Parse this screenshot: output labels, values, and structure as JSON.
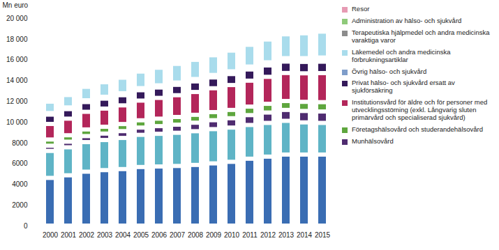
{
  "chart_data": {
    "type": "bar",
    "stacked": true,
    "ylabel": "Mn euro",
    "legend": "right",
    "categories": [
      "2000",
      "2001",
      "2002",
      "2003",
      "2004",
      "2005",
      "2006",
      "2007",
      "2008",
      "2009",
      "2010",
      "2011",
      "2012",
      "2013",
      "2014",
      "2015"
    ],
    "ylim": [
      0,
      20000
    ],
    "yticks": [
      0,
      2000,
      4000,
      6000,
      8000,
      {
        "value": 10000,
        "label": "10 000"
      },
      {
        "value": 12000,
        "label": "12 000"
      },
      {
        "value": 14000,
        "label": "14 000"
      },
      {
        "value": 16000,
        "label": "16 000"
      },
      {
        "value": 18000,
        "label": "18 000"
      },
      {
        "value": 20000,
        "label": "20 000"
      }
    ],
    "series": [
      {
        "color": "#3a6db3",
        "values": [
          4600,
          4850,
          5200,
          5350,
          5450,
          5650,
          5700,
          5750,
          5850,
          6000,
          6150,
          6450,
          6650,
          6850,
          6850,
          6850
        ]
      },
      {
        "color": "#5fb4c6",
        "values": [
          2600,
          2700,
          2850,
          2900,
          3000,
          3100,
          3150,
          3200,
          3250,
          3300,
          3300,
          3250,
          3250,
          3250,
          3100,
          3050
        ]
      },
      {
        "name": "Munhälsovård",
        "color": "#4f2c70",
        "values": [
          500,
          540,
          580,
          620,
          660,
          700,
          740,
          780,
          820,
          860,
          900,
          950,
          1000,
          1050,
          1100,
          1100
        ]
      },
      {
        "name": "Företagshälsovård och studerandehälsovård",
        "color": "#5ea63e",
        "values": [
          600,
          620,
          640,
          660,
          680,
          700,
          720,
          740,
          760,
          780,
          800,
          820,
          840,
          860,
          880,
          900
        ]
      },
      {
        "name": "Institutionsvård för äldre och för personer med utvecklingsstörning (exkl. Långvarig sluten primärvård och specialiserad sjukvård)",
        "color": "#b3265a",
        "values": [
          1500,
          1600,
          1700,
          1750,
          1800,
          1900,
          2000,
          2100,
          2200,
          2300,
          2400,
          2500,
          2600,
          2700,
          2750,
          2800
        ]
      },
      {
        "name": "Privat hälso- och sjukvård ersatt av sjukförsäkring",
        "color": "#34195a",
        "values": [
          900,
          920,
          940,
          960,
          980,
          1000,
          1000,
          1000,
          1020,
          1040,
          1060,
          1080,
          1100,
          1100,
          1100,
          1100
        ]
      },
      {
        "name": "Övrig hälso- och sjukvård",
        "color": "#7f9dca",
        "values": [
          150,
          160,
          170,
          180,
          190,
          200,
          210,
          220,
          230,
          240,
          260,
          280,
          300,
          330,
          360,
          400
        ]
      },
      {
        "name": "Läkemedel och andra medicinska förbrukningsartiklar",
        "color": "#a9dcec",
        "values": [
          1100,
          1200,
          1300,
          1400,
          1500,
          1600,
          1700,
          1800,
          1850,
          1900,
          2000,
          2100,
          2200,
          2300,
          2400,
          2500
        ]
      },
      {
        "name": "Terapeutiska hjälpmedel och andra medicinska varaktiga varor",
        "color": "#8c8c8c",
        "values": [
          350,
          350,
          360,
          360,
          370,
          370,
          380,
          380,
          380,
          390,
          390,
          390,
          400,
          400,
          400,
          400
        ]
      },
      {
        "name": "Administration av hälso- och sjukvård",
        "color": "#8fca7a",
        "values": [
          350,
          340,
          340,
          330,
          330,
          330,
          320,
          320,
          320,
          310,
          310,
          310,
          300,
          300,
          300,
          300
        ]
      },
      {
        "name": "Resor",
        "color": "#e69ab3",
        "values": [
          250,
          260,
          270,
          280,
          290,
          300,
          310,
          320,
          330,
          340,
          350,
          360,
          370,
          380,
          390,
          400
        ]
      }
    ]
  }
}
